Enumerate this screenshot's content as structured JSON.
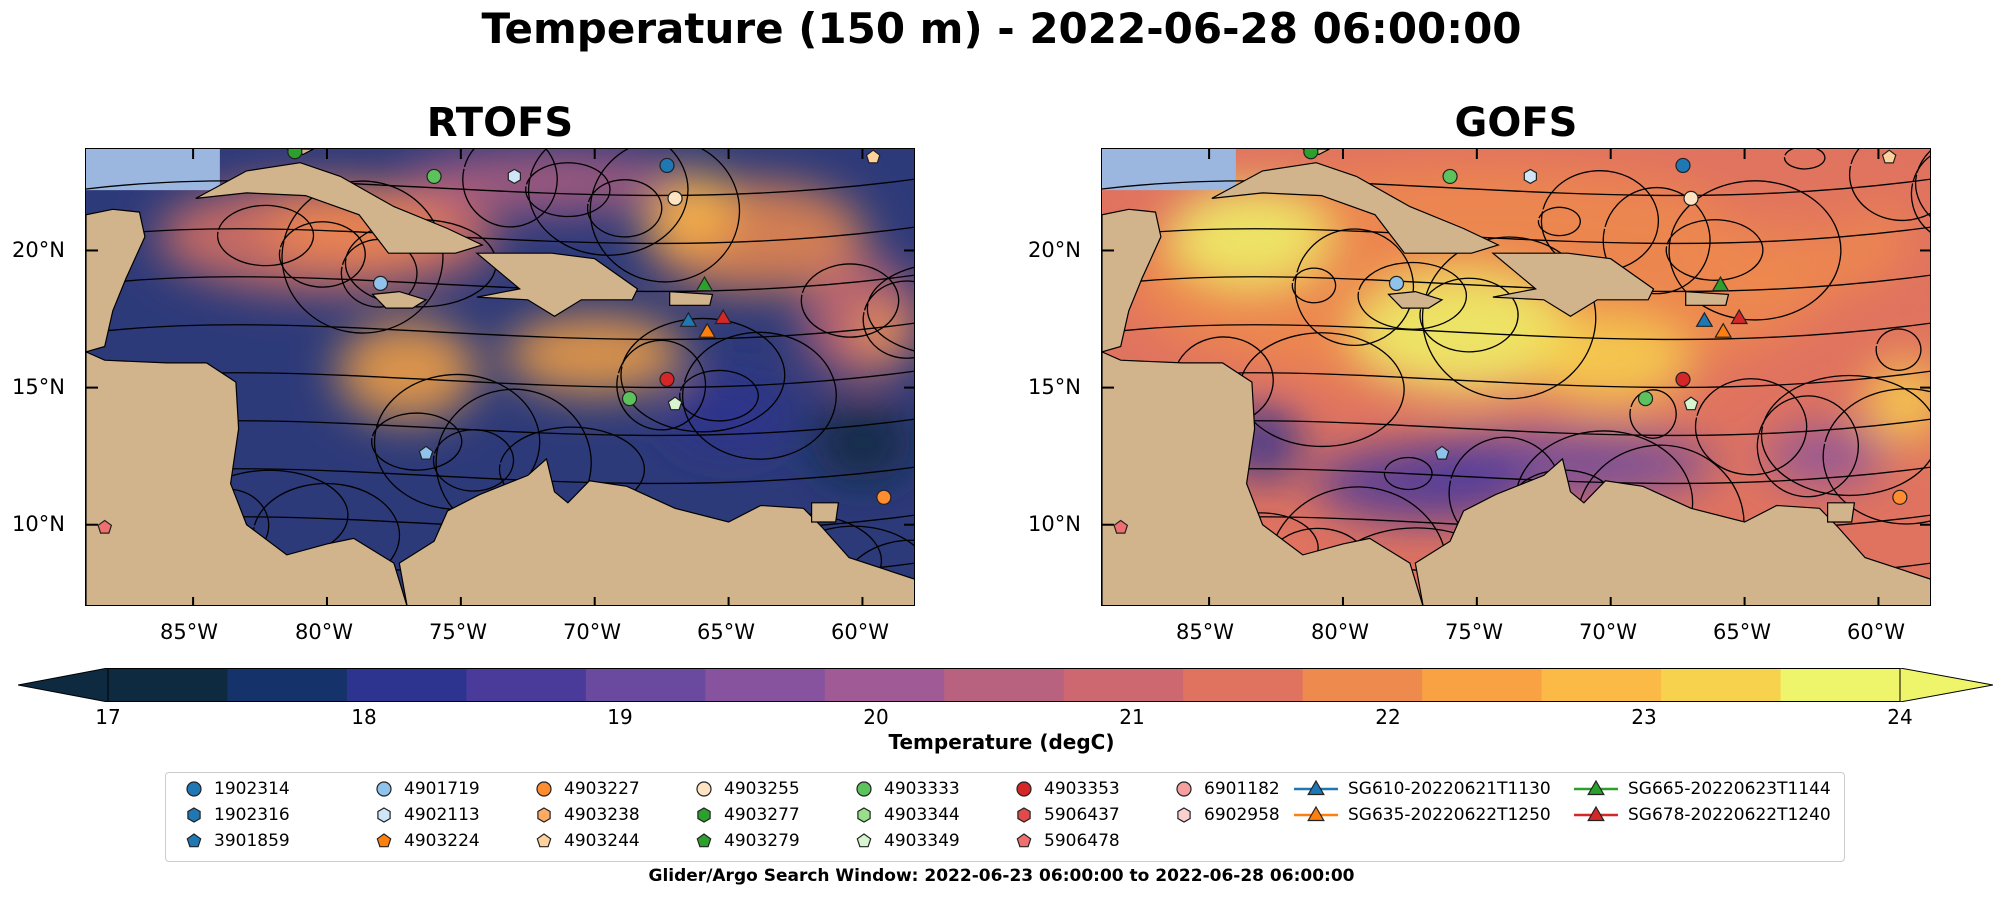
{
  "title": "Temperature (150 m) - 2022-06-28 06:00:00",
  "panels": [
    {
      "title": "RTOFS",
      "palette": "rtofs"
    },
    {
      "title": "GOFS",
      "palette": "gofs"
    }
  ],
  "lat_labels": [
    "20°N",
    "15°N",
    "10°N"
  ],
  "lat_values": [
    20,
    15,
    10
  ],
  "lon_labels": [
    "85°W",
    "80°W",
    "75°W",
    "70°W",
    "65°W",
    "60°W"
  ],
  "lon_values": [
    -85,
    -80,
    -75,
    -70,
    -65,
    -60
  ],
  "map_extent": {
    "lon": [
      -89,
      -58
    ],
    "lat": [
      7,
      23.7
    ]
  },
  "colorbar": {
    "label": "Temperature (degC)",
    "ticks": [
      "17",
      "18",
      "19",
      "20",
      "21",
      "22",
      "23",
      "24"
    ],
    "range": [
      17,
      24
    ],
    "extend": "both",
    "colors": [
      "#0d2a40",
      "#15326b",
      "#2d3490",
      "#4a3a9a",
      "#6a4a9f",
      "#87539e",
      "#a05b97",
      "#b8627f",
      "#cd6770",
      "#e0735f",
      "#ee8a4d",
      "#f8a243",
      "#fbba45",
      "#f7d24d",
      "#eef56a"
    ]
  },
  "legend": {
    "items": [
      {
        "label": "1902314",
        "marker": "circle",
        "color": "#1f77b4",
        "col": 0,
        "row": 0
      },
      {
        "label": "1902316",
        "marker": "hexagon",
        "color": "#1f77b4",
        "col": 0,
        "row": 1
      },
      {
        "label": "3901859",
        "marker": "pentagon",
        "color": "#1f77b4",
        "col": 0,
        "row": 2
      },
      {
        "label": "4901719",
        "marker": "circle",
        "color": "#8fc3ec",
        "col": 1,
        "row": 0
      },
      {
        "label": "4902113",
        "marker": "hexagon",
        "color": "#cfe6f8",
        "col": 1,
        "row": 1
      },
      {
        "label": "4903224",
        "marker": "pentagon",
        "color": "#ff7f0e",
        "col": 1,
        "row": 2
      },
      {
        "label": "4903227",
        "marker": "circle",
        "color": "#ff8c2e",
        "col": 2,
        "row": 0
      },
      {
        "label": "4903238",
        "marker": "hexagon",
        "color": "#ffab63",
        "col": 2,
        "row": 1
      },
      {
        "label": "4903244",
        "marker": "pentagon",
        "color": "#ffd19c",
        "col": 2,
        "row": 2
      },
      {
        "label": "4903255",
        "marker": "circle",
        "color": "#ffe4c4",
        "col": 3,
        "row": 0
      },
      {
        "label": "4903277",
        "marker": "hexagon",
        "color": "#2ca02c",
        "col": 3,
        "row": 1
      },
      {
        "label": "4903279",
        "marker": "pentagon",
        "color": "#2ca02c",
        "col": 3,
        "row": 2
      },
      {
        "label": "4903333",
        "marker": "circle",
        "color": "#5cc35c",
        "col": 4,
        "row": 0
      },
      {
        "label": "4903344",
        "marker": "hexagon",
        "color": "#98df8a",
        "col": 4,
        "row": 1
      },
      {
        "label": "4903349",
        "marker": "pentagon",
        "color": "#d7f5cf",
        "col": 4,
        "row": 2
      },
      {
        "label": "4903353",
        "marker": "circle",
        "color": "#d62728",
        "col": 5,
        "row": 0
      },
      {
        "label": "5906437",
        "marker": "hexagon",
        "color": "#e04a4a",
        "col": 5,
        "row": 1
      },
      {
        "label": "5906478",
        "marker": "pentagon",
        "color": "#f07070",
        "col": 5,
        "row": 2
      },
      {
        "label": "6901182",
        "marker": "circle",
        "color": "#f4a0a0",
        "col": 6,
        "row": 0
      },
      {
        "label": "6902958",
        "marker": "hexagon",
        "color": "#fbd0d0",
        "col": 6,
        "row": 1
      },
      {
        "label": "SG610-20220621T1130",
        "marker": "triangle-line",
        "color": "#1f77b4",
        "col": 7,
        "row": 0
      },
      {
        "label": "SG635-20220622T1250",
        "marker": "triangle-line",
        "color": "#ff7f0e",
        "col": 7,
        "row": 1
      },
      {
        "label": "SG665-20220623T1144",
        "marker": "triangle-line",
        "color": "#2ca02c",
        "col": 8,
        "row": 0
      },
      {
        "label": "SG678-20220622T1240",
        "marker": "triangle-line",
        "color": "#d62728",
        "col": 8,
        "row": 1
      }
    ]
  },
  "observations": [
    {
      "lon": -81.2,
      "lat": 23.6,
      "marker": "circle",
      "color": "#2ca02c"
    },
    {
      "lon": -76.0,
      "lat": 22.7,
      "marker": "circle",
      "color": "#5cc35c"
    },
    {
      "lon": -73.0,
      "lat": 22.7,
      "marker": "hexagon",
      "color": "#cfe6f8"
    },
    {
      "lon": -67.3,
      "lat": 23.1,
      "marker": "circle",
      "color": "#1f77b4"
    },
    {
      "lon": -59.6,
      "lat": 23.4,
      "marker": "pentagon",
      "color": "#ffd19c"
    },
    {
      "lon": -67.0,
      "lat": 21.9,
      "marker": "circle",
      "color": "#ffe4c4"
    },
    {
      "lon": -78.0,
      "lat": 18.8,
      "marker": "circle",
      "color": "#8fc3ec"
    },
    {
      "lon": -65.9,
      "lat": 18.7,
      "marker": "triangle",
      "color": "#2ca02c"
    },
    {
      "lon": -66.5,
      "lat": 17.4,
      "marker": "triangle",
      "color": "#1f77b4"
    },
    {
      "lon": -65.8,
      "lat": 17.0,
      "marker": "triangle",
      "color": "#ff7f0e"
    },
    {
      "lon": -65.2,
      "lat": 17.5,
      "marker": "triangle",
      "color": "#d62728"
    },
    {
      "lon": -67.3,
      "lat": 15.3,
      "marker": "circle",
      "color": "#d62728"
    },
    {
      "lon": -68.7,
      "lat": 14.6,
      "marker": "circle",
      "color": "#5cc35c"
    },
    {
      "lon": -67.0,
      "lat": 14.4,
      "marker": "pentagon",
      "color": "#d7f5cf"
    },
    {
      "lon": -76.3,
      "lat": 12.6,
      "marker": "pentagon",
      "color": "#8fc3ec"
    },
    {
      "lon": -59.2,
      "lat": 11.0,
      "marker": "circle",
      "color": "#ff8c2e"
    },
    {
      "lon": -88.3,
      "lat": 9.9,
      "marker": "pentagon",
      "color": "#f07070"
    }
  ],
  "footer": "Glider/Argo Search Window: 2022-06-23 06:00:00 to 2022-06-28 06:00:00"
}
